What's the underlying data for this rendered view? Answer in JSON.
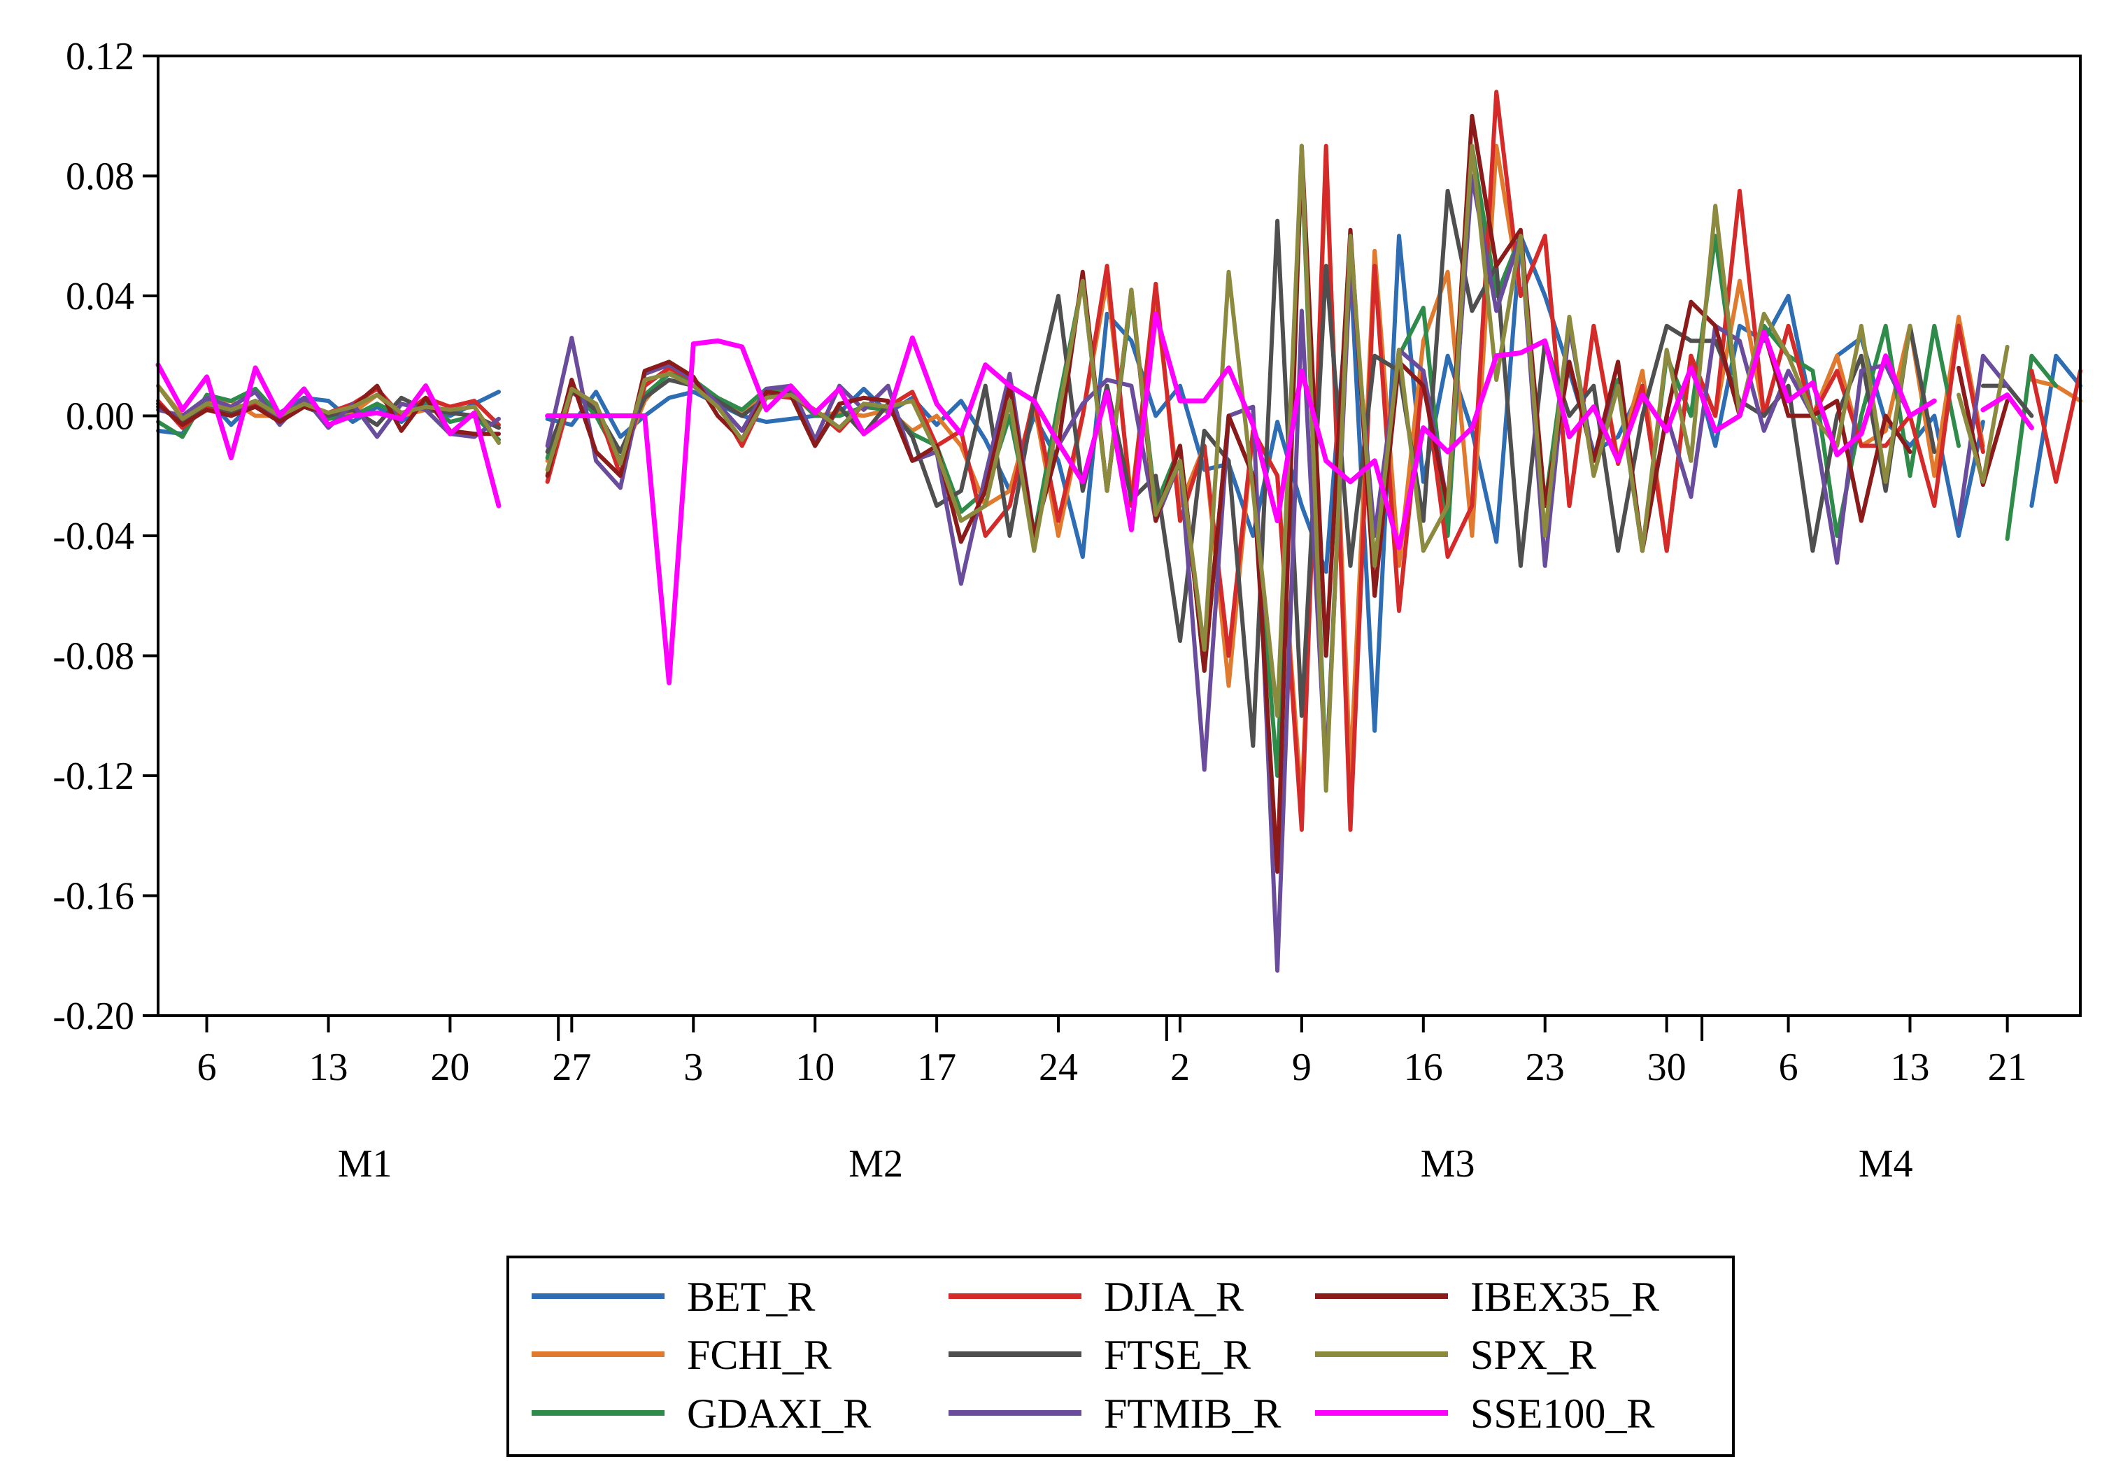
{
  "chart_data": {
    "type": "line",
    "title": "",
    "xlabel": "",
    "ylabel": "",
    "ylim": [
      -0.2,
      0.12
    ],
    "yticks": [
      "0.12",
      "0.08",
      "0.04",
      "0.00",
      "-0.04",
      "-0.08",
      "-0.12",
      "-0.16",
      "-0.20"
    ],
    "ytick_values": [
      0.12,
      0.08,
      0.04,
      0.0,
      -0.04,
      -0.08,
      -0.12,
      -0.16,
      -0.2
    ],
    "grid": false,
    "legend_position": "bottom-center",
    "x_day_ticks": [
      {
        "label": "6",
        "i": 2
      },
      {
        "label": "13",
        "i": 7
      },
      {
        "label": "20",
        "i": 12
      },
      {
        "label": "27",
        "i": 17
      },
      {
        "label": "3",
        "i": 22
      },
      {
        "label": "10",
        "i": 27
      },
      {
        "label": "17",
        "i": 32
      },
      {
        "label": "24",
        "i": 37
      },
      {
        "label": "2",
        "i": 42
      },
      {
        "label": "9",
        "i": 47
      },
      {
        "label": "16",
        "i": 52
      },
      {
        "label": "23",
        "i": 57
      },
      {
        "label": "30",
        "i": 62
      },
      {
        "label": "6",
        "i": 67
      },
      {
        "label": "13",
        "i": 72
      },
      {
        "label": "21",
        "i": 76
      }
    ],
    "months": [
      {
        "label": "M1",
        "start": 0,
        "end": 17
      },
      {
        "label": "M2",
        "start": 17,
        "end": 42
      },
      {
        "label": "M3",
        "start": 42,
        "end": 64
      },
      {
        "label": "M4",
        "start": 64,
        "end": 78
      }
    ],
    "series": [
      {
        "name": "BET_R",
        "color": "#2e6db4",
        "values": [
          -0.005,
          -0.006,
          0.006,
          -0.003,
          0.005,
          0.001,
          0.006,
          0.005,
          -0.002,
          0.003,
          -0.002,
          0.004,
          0.0,
          0.004,
          0.008,
          null,
          -0.001,
          -0.003,
          0.008,
          -0.007,
          0.0,
          0.006,
          0.008,
          0.004,
          0.0,
          -0.002,
          -0.001,
          0.0,
          0.001,
          0.009,
          0.001,
          0.006,
          -0.003,
          0.005,
          -0.008,
          -0.025,
          0.0,
          -0.015,
          -0.047,
          0.034,
          0.025,
          0.0,
          0.01,
          -0.018,
          -0.016,
          -0.04,
          -0.002,
          -0.03,
          -0.052,
          0.05,
          -0.105,
          0.06,
          -0.022,
          0.02,
          -0.005,
          -0.042,
          0.06,
          0.04,
          0.015,
          -0.012,
          -0.007,
          0.01,
          -0.045,
          0.02,
          -0.01,
          0.03,
          0.025,
          0.04,
          0.0,
          0.02,
          0.026,
          -0.002,
          -0.01,
          0.0,
          -0.04,
          -0.002,
          null,
          -0.03,
          0.02,
          0.01
        ]
      },
      {
        "name": "FCHI_R",
        "color": "#e07a2e",
        "values": [
          0.01,
          0.0,
          0.004,
          0.005,
          0.0,
          0.0,
          0.004,
          0.0,
          0.001,
          0.007,
          0.0,
          0.002,
          0.001,
          0.0,
          -0.004,
          null,
          -0.015,
          0.01,
          0.002,
          -0.015,
          0.005,
          0.015,
          0.01,
          0.006,
          0.001,
          0.008,
          0.008,
          0.0,
          0.001,
          0.0,
          0.002,
          -0.005,
          0.0,
          -0.01,
          -0.03,
          -0.025,
          0.004,
          -0.04,
          0.0,
          0.045,
          -0.028,
          0.04,
          -0.03,
          -0.01,
          -0.09,
          -0.005,
          -0.02,
          -0.13,
          0.085,
          -0.12,
          0.055,
          -0.05,
          0.025,
          0.048,
          -0.04,
          0.09,
          0.04,
          0.06,
          -0.03,
          0.03,
          -0.015,
          0.015,
          -0.045,
          0.02,
          0.0,
          0.045,
          0.0,
          0.03,
          0.0,
          0.02,
          -0.01,
          -0.005,
          0.03,
          -0.02,
          0.033,
          -0.01,
          null,
          0.012,
          0.01,
          0.005
        ]
      },
      {
        "name": "GDAXI_R",
        "color": "#2e8b4a",
        "values": [
          -0.002,
          -0.007,
          0.007,
          0.005,
          0.009,
          0.0,
          0.005,
          -0.001,
          0.0,
          0.004,
          0.0,
          0.005,
          -0.002,
          0.0,
          -0.008,
          null,
          -0.014,
          0.009,
          0.0,
          -0.015,
          0.007,
          0.014,
          0.012,
          0.006,
          0.002,
          0.009,
          0.009,
          0.0,
          0.0,
          0.003,
          0.002,
          -0.006,
          -0.01,
          -0.032,
          -0.025,
          0.0,
          -0.04,
          0.004,
          0.045,
          -0.025,
          0.04,
          -0.03,
          -0.01,
          -0.085,
          0.0,
          -0.02,
          -0.12,
          0.085,
          -0.12,
          0.055,
          -0.05,
          0.02,
          0.036,
          -0.04,
          0.09,
          0.04,
          0.06,
          -0.03,
          0.03,
          -0.015,
          0.012,
          -0.045,
          0.02,
          0.0,
          0.06,
          0.0,
          0.03,
          0.02,
          0.015,
          -0.04,
          0.0,
          0.03,
          -0.02,
          0.03,
          -0.01,
          null,
          -0.041,
          0.02,
          0.01
        ]
      },
      {
        "name": "DJIA_R",
        "color": "#d42a2a",
        "values": [
          0.005,
          -0.004,
          0.003,
          0.0,
          0.004,
          -0.002,
          0.004,
          0.001,
          0.004,
          0.009,
          0.0,
          0.006,
          0.003,
          0.005,
          -0.003,
          null,
          -0.022,
          0.008,
          0.004,
          -0.02,
          0.01,
          0.016,
          0.012,
          0.004,
          -0.01,
          0.007,
          0.006,
          0.002,
          -0.005,
          0.004,
          0.003,
          0.008,
          -0.01,
          -0.005,
          -0.04,
          -0.03,
          0.006,
          -0.035,
          0.0,
          0.05,
          -0.03,
          0.044,
          -0.035,
          -0.01,
          -0.08,
          -0.005,
          -0.02,
          -0.138,
          0.09,
          -0.138,
          0.05,
          -0.065,
          0.015,
          -0.047,
          -0.03,
          0.108,
          0.04,
          0.06,
          -0.03,
          0.03,
          -0.016,
          0.01,
          -0.045,
          0.02,
          0.0,
          0.075,
          0.0,
          0.03,
          0.0,
          0.015,
          -0.01,
          -0.01,
          0.0,
          -0.03,
          0.03,
          -0.012,
          null,
          0.015,
          -0.022,
          0.015
        ]
      },
      {
        "name": "FTSE_R",
        "color": "#4f4f4f",
        "values": [
          0.003,
          -0.002,
          0.004,
          0.001,
          0.003,
          -0.001,
          0.003,
          0.0,
          0.002,
          -0.003,
          0.006,
          0.002,
          0.001,
          0.0,
          -0.004,
          null,
          -0.012,
          0.008,
          0.002,
          -0.012,
          0.006,
          0.012,
          0.01,
          0.005,
          0.0,
          0.006,
          0.008,
          -0.01,
          0.003,
          -0.006,
          0.004,
          -0.007,
          -0.03,
          -0.025,
          0.01,
          -0.04,
          0.005,
          0.04,
          -0.025,
          0.01,
          -0.028,
          -0.02,
          -0.075,
          -0.005,
          -0.015,
          -0.11,
          0.065,
          -0.1,
          0.05,
          -0.05,
          0.02,
          0.015,
          -0.035,
          0.075,
          0.035,
          0.05,
          -0.05,
          0.025,
          0.0,
          0.01,
          -0.045,
          0.0,
          0.03,
          0.025,
          0.025,
          0.005,
          0.0,
          0.01,
          -0.045,
          0.0,
          0.02,
          -0.025,
          0.03,
          -0.012,
          null,
          0.01,
          0.01,
          0.0
        ]
      },
      {
        "name": "FTMIB_R",
        "color": "#6a4c9c",
        "values": [
          0.002,
          0.0,
          0.006,
          0.003,
          0.008,
          -0.003,
          0.006,
          -0.004,
          0.004,
          -0.007,
          0.004,
          0.002,
          -0.006,
          -0.007,
          -0.001,
          null,
          -0.01,
          0.026,
          -0.015,
          -0.024,
          0.014,
          0.017,
          0.012,
          0.004,
          -0.005,
          0.009,
          0.01,
          -0.008,
          0.01,
          0.002,
          0.01,
          -0.015,
          -0.012,
          -0.056,
          -0.02,
          0.014,
          -0.04,
          -0.01,
          0.004,
          0.012,
          0.01,
          -0.035,
          -0.015,
          -0.118,
          0.0,
          0.003,
          -0.185,
          0.035,
          -0.12,
          0.05,
          -0.04,
          0.022,
          0.015,
          -0.03,
          0.08,
          0.035,
          0.06,
          -0.05,
          0.03,
          -0.015,
          0.01,
          -0.045,
          0.0,
          -0.027,
          0.03,
          0.025,
          -0.005,
          0.015,
          0.0,
          -0.049,
          0.015,
          0.017,
          0.0,
          null,
          -0.036,
          0.02,
          0.01
        ]
      },
      {
        "name": "IBEX35_R",
        "color": "#8b1a1a",
        "values": [
          0.004,
          -0.003,
          0.002,
          0.0,
          0.003,
          -0.002,
          0.003,
          0.001,
          0.003,
          0.01,
          -0.005,
          0.006,
          -0.005,
          -0.006,
          -0.006,
          null,
          -0.02,
          0.012,
          -0.012,
          -0.02,
          0.015,
          0.018,
          0.013,
          0.0,
          -0.008,
          0.008,
          0.007,
          -0.01,
          0.004,
          0.006,
          0.005,
          -0.015,
          -0.01,
          -0.042,
          -0.025,
          0.01,
          -0.04,
          -0.01,
          0.048,
          -0.025,
          0.042,
          -0.035,
          -0.01,
          -0.085,
          0.0,
          -0.02,
          -0.152,
          0.09,
          -0.08,
          0.062,
          -0.06,
          0.018,
          0.01,
          -0.03,
          0.1,
          0.05,
          0.062,
          -0.03,
          0.018,
          -0.015,
          0.018,
          -0.045,
          0.0,
          0.038,
          0.03,
          0.0,
          0.028,
          0.0,
          0.0,
          0.005,
          -0.035,
          0.0,
          -0.012,
          null,
          0.016,
          -0.023,
          0.005
        ]
      },
      {
        "name": "SPX_R",
        "color": "#8b8a3e",
        "values": [
          0.01,
          -0.001,
          0.004,
          0.002,
          0.005,
          0.0,
          0.004,
          0.001,
          0.003,
          0.007,
          0.001,
          0.003,
          0.002,
          0.003,
          -0.009,
          null,
          -0.018,
          0.009,
          0.004,
          -0.016,
          0.012,
          0.014,
          0.01,
          0.003,
          -0.008,
          0.006,
          0.007,
          0.002,
          -0.004,
          0.004,
          0.003,
          0.005,
          -0.012,
          -0.035,
          -0.03,
          0.005,
          -0.045,
          0.0,
          0.045,
          -0.025,
          0.042,
          -0.033,
          -0.015,
          -0.078,
          0.048,
          -0.025,
          -0.1,
          0.09,
          -0.125,
          0.06,
          -0.05,
          0.022,
          -0.045,
          -0.03,
          0.09,
          0.012,
          0.06,
          -0.04,
          0.033,
          -0.02,
          0.01,
          -0.045,
          0.022,
          -0.015,
          0.07,
          0.0,
          0.034,
          0.02,
          0.0,
          -0.01,
          0.03,
          -0.022,
          0.03,
          null,
          0.007,
          -0.022,
          0.023
        ]
      },
      {
        "name": "SSE100_R",
        "color": "#ff00ff",
        "values": [
          0.017,
          0.002,
          0.013,
          -0.014,
          0.016,
          0.0,
          0.009,
          -0.003,
          0.0,
          0.001,
          -0.001,
          0.01,
          -0.006,
          0.001,
          -0.03,
          null,
          0.0,
          0.0,
          0.0,
          0.0,
          0.0,
          -0.089,
          0.024,
          0.025,
          0.023,
          0.002,
          0.01,
          0.001,
          0.009,
          -0.006,
          0.0,
          0.026,
          0.004,
          -0.006,
          0.017,
          0.01,
          0.005,
          -0.009,
          -0.022,
          0.008,
          -0.038,
          0.034,
          0.005,
          0.005,
          0.016,
          -0.003,
          -0.035,
          0.015,
          -0.015,
          -0.022,
          -0.015,
          -0.044,
          -0.004,
          -0.012,
          -0.004,
          0.02,
          0.021,
          0.025,
          -0.007,
          0.003,
          -0.015,
          0.007,
          -0.005,
          0.016,
          -0.005,
          0.0,
          0.028,
          0.005,
          0.011,
          -0.013,
          -0.006,
          0.02,
          0.0,
          0.005,
          null,
          0.002,
          0.007,
          -0.004
        ]
      }
    ]
  }
}
